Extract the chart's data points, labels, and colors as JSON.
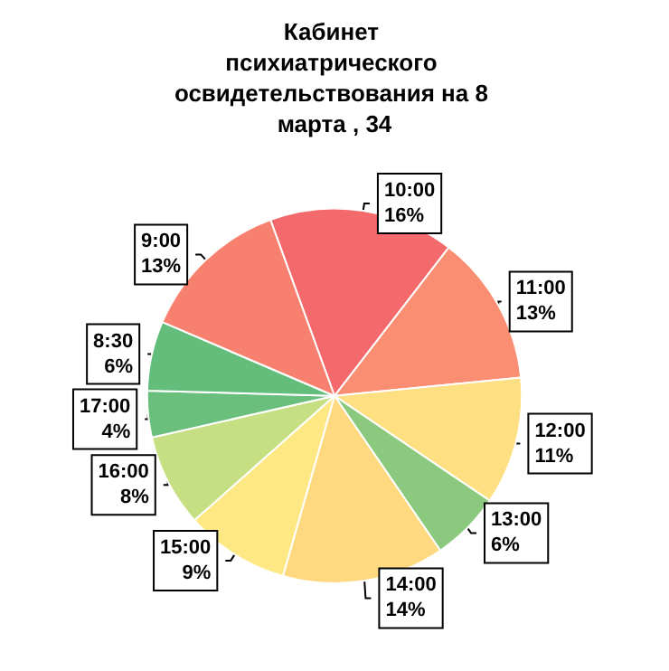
{
  "chart_data": {
    "type": "pie",
    "title": "Кабинет психиатрического освидетельствования на 8 марта , 34",
    "categories": [
      "10:00",
      "11:00",
      "12:00",
      "13:00",
      "14:00",
      "15:00",
      "16:00",
      "17:00",
      "8:30",
      "9:00"
    ],
    "values": [
      16,
      13,
      11,
      6,
      14,
      9,
      8,
      4,
      6,
      13
    ],
    "value_labels": [
      "16%",
      "13%",
      "11%",
      "6%",
      "14%",
      "9%",
      "8%",
      "4%",
      "6%",
      "13%"
    ],
    "colors": [
      "#f4696b",
      "#f98e72",
      "#fedf81",
      "#8bc97e",
      "#fed980",
      "#fee883",
      "#c6df83",
      "#6bbf7c",
      "#63be7b",
      "#f8806f"
    ],
    "legend": false
  }
}
